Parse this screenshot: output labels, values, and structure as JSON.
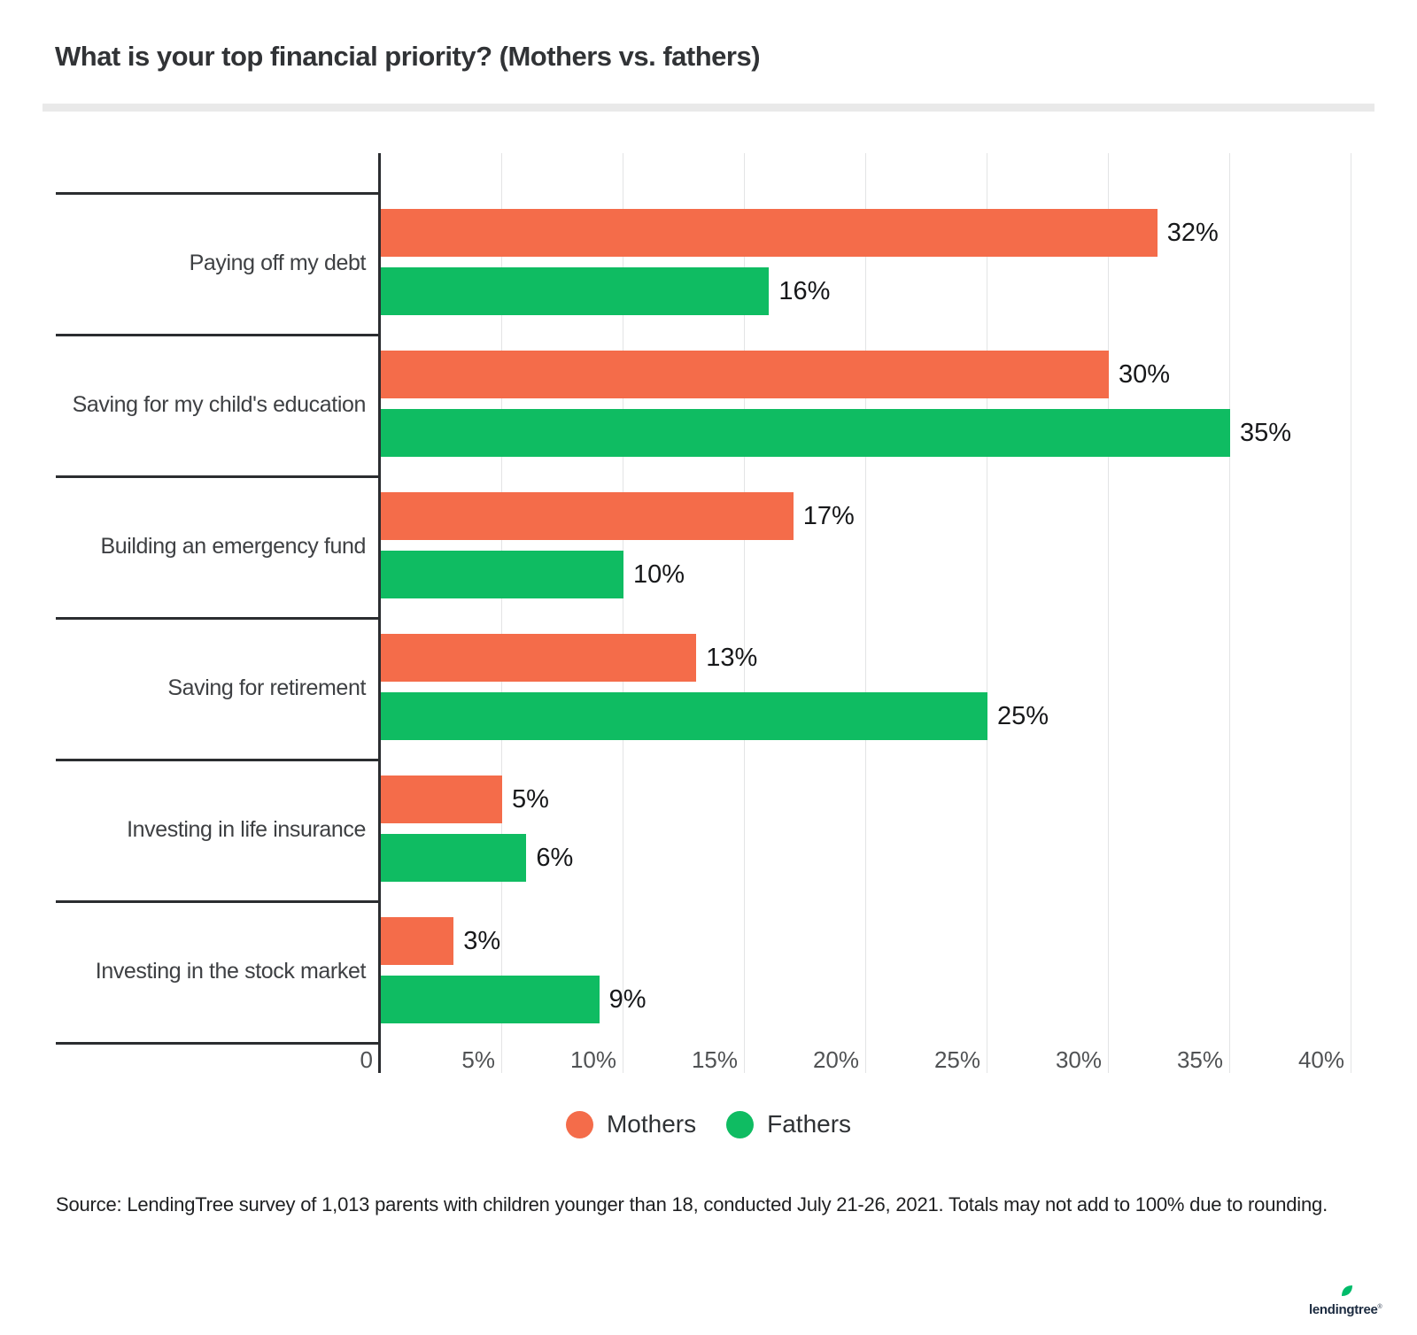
{
  "title": "What is your top financial priority? (Mothers vs. fathers)",
  "chart_data": {
    "type": "bar",
    "orientation": "horizontal",
    "title": "What is your top financial priority? (Mothers vs. fathers)",
    "categories": [
      "Paying off my debt",
      "Saving for my child's education",
      "Building an emergency fund",
      "Saving for retirement",
      "Investing in life insurance",
      "Investing in the stock market"
    ],
    "series": [
      {
        "name": "Mothers",
        "color": "#f46c4a",
        "values": [
          32,
          30,
          17,
          13,
          5,
          3
        ]
      },
      {
        "name": "Fathers",
        "color": "#0fbc62",
        "values": [
          16,
          35,
          10,
          25,
          6,
          9
        ]
      }
    ],
    "value_suffix": "%",
    "x_ticks": [
      "0",
      "5%",
      "10%",
      "15%",
      "20%",
      "25%",
      "30%",
      "35%",
      "40%"
    ],
    "xlim": [
      0,
      41
    ],
    "grid": "vertical gridlines every 5%",
    "legend_position": "bottom-center"
  },
  "legend": [
    {
      "label": "Mothers",
      "color": "#f46c4a"
    },
    {
      "label": "Fathers",
      "color": "#0fbc62"
    }
  ],
  "source_note": "Source: LendingTree survey of 1,013 parents with children younger than 18, conducted July 21-26, 2021. Totals may not add to 100% due to rounding.",
  "footer": {
    "logo_text": "lendingtree",
    "registered_mark": "®"
  },
  "colors": {
    "mothers": "#f46c4a",
    "fathers": "#0fbc62",
    "axis": "#2b2d30",
    "gridline": "#e3e4e5",
    "logo_navy": "#1c2b40",
    "leaf_green": "#00bb6a"
  }
}
